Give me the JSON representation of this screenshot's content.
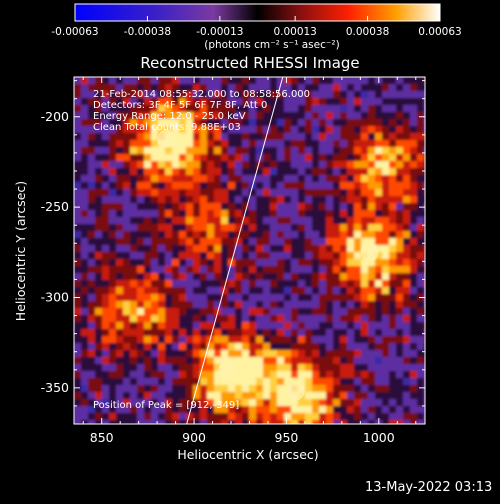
{
  "colors": {
    "background": "#000000",
    "foreground": "#ffffff",
    "colormap": [
      "#0000ff",
      "#5a1aa6",
      "#6a2fa0",
      "#000000",
      "#8a1010",
      "#ff2000",
      "#ff8a00",
      "#ffffff"
    ]
  },
  "colorbar": {
    "tick_labels": [
      "-0.00063",
      "-0.00038",
      "-0.00013",
      "0.00013",
      "0.00038",
      "0.00063"
    ],
    "unit_label": "(photons cm⁻² s⁻¹ asec⁻²)",
    "range": [
      -0.00063,
      0.00063
    ]
  },
  "chart_data": {
    "type": "heatmap",
    "title": "Reconstructed RHESSI Image",
    "xlabel": "Heliocentric X (arcsec)",
    "ylabel": "Heliocentric Y (arcsec)",
    "xlim": [
      835,
      1025
    ],
    "ylim": [
      -370,
      -178
    ],
    "xticks": [
      850,
      900,
      950,
      1000
    ],
    "yticks": [
      -200,
      -250,
      -300,
      -350
    ],
    "annotations": [
      "21-Feb-2014 08:55:32.000 to 08:58:56.000",
      "Detectors: 3F 4F 5F 6F 7F 8F, Att 0",
      "Energy Range: 12.0 - 25.0 keV",
      "Clean      Total counts: 9.88E+03"
    ],
    "peak_label": "Position of Peak = [912,-349]",
    "peak": [
      912,
      -349
    ],
    "limb_line": [
      [
        896,
        -370
      ],
      [
        948,
        -178
      ]
    ],
    "bright_regions": [
      {
        "name": "upper-left source",
        "x": 885,
        "y": -212,
        "level": 0.95
      },
      {
        "name": "lower-middle source",
        "x": 918,
        "y": -340,
        "level": 0.9
      },
      {
        "name": "lower source",
        "x": 955,
        "y": -352,
        "level": 0.85
      },
      {
        "name": "right source",
        "x": 995,
        "y": -275,
        "level": 0.8
      },
      {
        "name": "right-upper source",
        "x": 1000,
        "y": -225,
        "level": 0.6
      },
      {
        "name": "mid-left patch",
        "x": 865,
        "y": -305,
        "level": 0.55
      },
      {
        "name": "mid patch",
        "x": 905,
        "y": -258,
        "level": 0.45
      }
    ]
  },
  "footer": {
    "date": "13-May-2022 03:13"
  }
}
